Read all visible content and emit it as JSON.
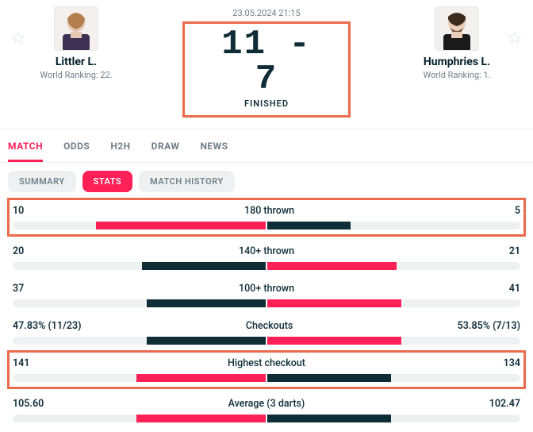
{
  "colors": {
    "accent": "#ff2058",
    "dark": "#0f2d37",
    "track": "#eef1f2",
    "highlight_border": "#ed6b4d"
  },
  "match": {
    "datetime": "23.05.2024 21:15",
    "score": "11 - 7",
    "status": "FINISHED"
  },
  "players": {
    "left": {
      "name": "Littler L.",
      "ranking": "World Ranking: 22."
    },
    "right": {
      "name": "Humphries L.",
      "ranking": "World Ranking: 1."
    }
  },
  "tabs": [
    "MATCH",
    "ODDS",
    "H2H",
    "DRAW",
    "NEWS"
  ],
  "active_tab": 0,
  "subtabs": [
    "SUMMARY",
    "STATS",
    "MATCH HISTORY"
  ],
  "active_subtab": 1,
  "stats": [
    {
      "label": "180 thrown",
      "left_text": "10",
      "right_text": "5",
      "left_pct": 67,
      "right_pct": 33,
      "left_color": "#ff2058",
      "right_color": "#0f2d37",
      "highlight": true
    },
    {
      "label": "140+ thrown",
      "left_text": "20",
      "right_text": "21",
      "left_pct": 49,
      "right_pct": 51,
      "left_color": "#0f2d37",
      "right_color": "#ff2058",
      "highlight": false
    },
    {
      "label": "100+ thrown",
      "left_text": "37",
      "right_text": "41",
      "left_pct": 47,
      "right_pct": 53,
      "left_color": "#0f2d37",
      "right_color": "#ff2058",
      "highlight": false
    },
    {
      "label": "Checkouts",
      "left_text": "47.83% (11/23)",
      "right_text": "53.85% (7/13)",
      "left_pct": 47,
      "right_pct": 53,
      "left_color": "#0f2d37",
      "right_color": "#ff2058",
      "highlight": false
    },
    {
      "label": "Highest checkout",
      "left_text": "141",
      "right_text": "134",
      "left_pct": 51,
      "right_pct": 49,
      "left_color": "#ff2058",
      "right_color": "#0f2d37",
      "highlight": true
    },
    {
      "label": "Average (3 darts)",
      "left_text": "105.60",
      "right_text": "102.47",
      "left_pct": 51,
      "right_pct": 49,
      "left_color": "#ff2058",
      "right_color": "#0f2d37",
      "highlight": false
    }
  ]
}
